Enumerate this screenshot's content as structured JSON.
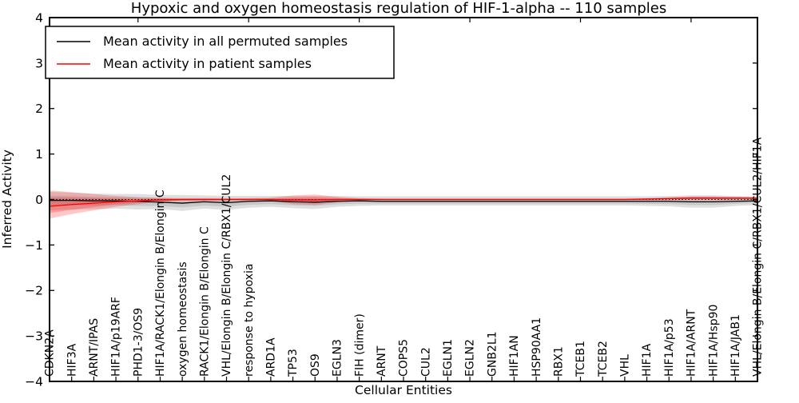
{
  "chart_data": {
    "type": "line",
    "title": "Hypoxic and oxygen homeostasis regulation of HIF-1-alpha -- 110 samples",
    "xlabel": "Cellular Entities",
    "ylabel": "Inferred Activity",
    "ylim": [
      -4,
      4
    ],
    "yticks": [
      -4,
      -3,
      -2,
      -1,
      0,
      1,
      2,
      3,
      4
    ],
    "ytick_labels": [
      "−4",
      "−3",
      "−2",
      "−1",
      "0",
      "1",
      "2",
      "3",
      "4"
    ],
    "grid": false,
    "legend_position": "upper left",
    "frame_color": "#000000",
    "background_color": "#ffffff",
    "zero_line": {
      "y": 0,
      "color": "#000000",
      "style": "dotted"
    },
    "categories": [
      "CDKN2A",
      "HIF3A",
      "ARNT/IPAS",
      "HIF1A/p19ARF",
      "PHD1-3/OS9",
      "HIF1A/RACK1/Elongin B/Elongin C",
      "oxygen homeostasis",
      "RACK1/Elongin B/Elongin C",
      "VHL/Elongin B/Elongin C/RBX1/CUL2",
      "response to hypoxia",
      "ARD1A",
      "TP53",
      "OS9",
      "EGLN3",
      "FIH (dimer)",
      "ARNT",
      "COPS5",
      "CUL2",
      "EGLN1",
      "EGLN2",
      "GNB2L1",
      "HIF1AN",
      "HSP90AA1",
      "RBX1",
      "TCEB1",
      "TCEB2",
      "VHL",
      "HIF1A",
      "HIF1A/p53",
      "HIF1A/ARNT",
      "HIF1A/Hsp90",
      "HIF1A/JAB1",
      "VHL/Elongin B/Elongin C/RBX1/CUL2/HIF1A"
    ],
    "series": [
      {
        "name": "Mean activity in all permuted samples",
        "color": "#000000",
        "band_color": "rgba(128,128,128,0.25)",
        "values": [
          -0.02,
          -0.02,
          -0.03,
          -0.03,
          -0.04,
          -0.06,
          -0.08,
          -0.05,
          -0.07,
          -0.04,
          -0.03,
          -0.05,
          -0.06,
          -0.04,
          -0.03,
          -0.04,
          -0.04,
          -0.04,
          -0.04,
          -0.04,
          -0.04,
          -0.04,
          -0.04,
          -0.04,
          -0.04,
          -0.04,
          -0.04,
          -0.04,
          -0.04,
          -0.05,
          -0.05,
          -0.04,
          -0.03
        ],
        "band_upper": [
          0.17,
          0.15,
          0.13,
          0.12,
          0.12,
          0.1,
          0.1,
          0.09,
          0.08,
          0.08,
          0.08,
          0.08,
          0.08,
          0.08,
          0.07,
          0.07,
          0.07,
          0.07,
          0.07,
          0.07,
          0.07,
          0.07,
          0.07,
          0.07,
          0.07,
          0.07,
          0.07,
          0.07,
          0.08,
          0.09,
          0.09,
          0.08,
          0.07
        ],
        "band_lower": [
          -0.24,
          -0.22,
          -0.21,
          -0.2,
          -0.22,
          -0.21,
          -0.25,
          -0.2,
          -0.23,
          -0.18,
          -0.16,
          -0.19,
          -0.21,
          -0.16,
          -0.14,
          -0.13,
          -0.13,
          -0.13,
          -0.13,
          -0.13,
          -0.13,
          -0.13,
          -0.13,
          -0.13,
          -0.13,
          -0.13,
          -0.13,
          -0.14,
          -0.15,
          -0.18,
          -0.18,
          -0.14,
          -0.12
        ]
      },
      {
        "name": "Mean activity in patient samples",
        "color": "#ff0000",
        "band_color": "rgba(255,0,0,0.22)",
        "values": [
          -0.15,
          -0.11,
          -0.08,
          -0.05,
          -0.03,
          -0.01,
          0.0,
          0.0,
          0.0,
          0.0,
          0.0,
          -0.01,
          -0.01,
          0.0,
          0.0,
          0.0,
          0.0,
          0.0,
          0.0,
          0.0,
          0.0,
          0.0,
          0.0,
          0.0,
          0.0,
          0.0,
          0.0,
          0.01,
          0.02,
          0.03,
          0.03,
          0.03,
          0.03
        ],
        "band_upper": [
          0.2,
          0.16,
          0.12,
          0.08,
          0.05,
          0.04,
          0.03,
          0.03,
          0.03,
          0.03,
          0.04,
          0.09,
          0.11,
          0.06,
          0.03,
          0.02,
          0.02,
          0.02,
          0.02,
          0.02,
          0.02,
          0.02,
          0.02,
          0.02,
          0.02,
          0.02,
          0.02,
          0.03,
          0.05,
          0.07,
          0.07,
          0.06,
          0.05
        ],
        "band_lower": [
          -0.42,
          -0.32,
          -0.24,
          -0.16,
          -0.1,
          -0.05,
          -0.03,
          -0.03,
          -0.02,
          -0.02,
          -0.02,
          -0.1,
          -0.12,
          -0.06,
          -0.02,
          -0.01,
          -0.01,
          -0.01,
          -0.01,
          -0.01,
          -0.01,
          -0.01,
          -0.01,
          -0.01,
          -0.01,
          -0.01,
          -0.01,
          -0.01,
          0.0,
          0.0,
          0.0,
          0.0,
          0.0
        ]
      }
    ]
  }
}
